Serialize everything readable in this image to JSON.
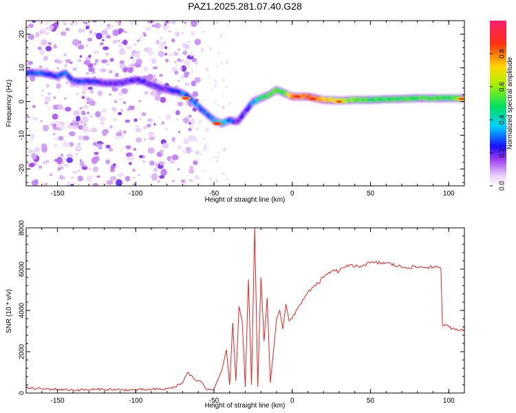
{
  "title": "PAZ1.2025.281.07.40.G28",
  "chart_data": [
    {
      "type": "heatmap",
      "title": "PAZ1.2025.281.07.40.G28",
      "xlabel": "Height of straight line (km)",
      "ylabel": "Frequency (Hz)",
      "xlim": [
        -170,
        110
      ],
      "ylim": [
        -25,
        24
      ],
      "xticks": [
        -150,
        -100,
        -50,
        0,
        50,
        100
      ],
      "yticks": [
        -20,
        -10,
        0,
        10,
        20
      ],
      "colorbar": {
        "label": "Normalized spectral amplitude",
        "range": [
          0,
          1
        ],
        "ticks": [
          0.0,
          0.2,
          0.4,
          0.6,
          0.8
        ]
      },
      "ridge": {
        "x": [
          -170,
          -160,
          -150,
          -145,
          -140,
          -130,
          -120,
          -110,
          -100,
          -95,
          -90,
          -85,
          -80,
          -75,
          -70,
          -65,
          -60,
          -55,
          -50,
          -45,
          -40,
          -35,
          -30,
          -25,
          -20,
          -15,
          -10,
          -5,
          0,
          10,
          20,
          30,
          40,
          50,
          60,
          70,
          80,
          90,
          100,
          110
        ],
        "y": [
          8.5,
          8.5,
          7.5,
          8.5,
          6,
          6,
          5.5,
          5.5,
          6.5,
          6,
          5,
          4,
          3.5,
          3,
          2.5,
          1,
          -1.5,
          -3.5,
          -5.5,
          -6.5,
          -5.5,
          -6,
          -3,
          0,
          1,
          2,
          3.5,
          2.5,
          1.5,
          1.5,
          0.5,
          0.3,
          0.5,
          0.5,
          0.7,
          0.8,
          1,
          1,
          1,
          1
        ],
        "amplitude": [
          0.25,
          0.3,
          0.25,
          0.3,
          0.25,
          0.25,
          0.2,
          0.2,
          0.2,
          0.2,
          0.2,
          0.2,
          0.2,
          0.25,
          0.3,
          0.3,
          0.3,
          0.3,
          0.35,
          0.4,
          0.3,
          0.2,
          0.2,
          0.35,
          0.45,
          0.5,
          0.55,
          0.55,
          0.75,
          0.8,
          0.75,
          0.65,
          0.55,
          0.5,
          0.5,
          0.5,
          0.5,
          0.5,
          0.5,
          0.55
        ]
      },
      "hotspots": [
        {
          "x": -68,
          "y": 1,
          "amplitude": 0.9
        },
        {
          "x": -48,
          "y": -6.5,
          "amplitude": 0.95
        },
        {
          "x": 3,
          "y": 1.5,
          "amplitude": 0.95
        },
        {
          "x": 13,
          "y": 0.8,
          "amplitude": 0.95
        },
        {
          "x": 30,
          "y": 0,
          "amplitude": 0.85
        },
        {
          "x": 108,
          "y": 0.8,
          "amplitude": 0.85
        }
      ]
    },
    {
      "type": "line",
      "xlabel": "Height of straight line (km)",
      "ylabel": "SNR (10 * v/v)",
      "xlim": [
        -170,
        110
      ],
      "ylim": [
        0,
        8000
      ],
      "xticks": [
        -150,
        -100,
        -50,
        0,
        50,
        100
      ],
      "yticks": [
        0,
        2000,
        4000,
        6000,
        8000
      ],
      "series": [
        {
          "name": "SNR",
          "color": "#e8201e",
          "x": [
            -170,
            -160,
            -150,
            -140,
            -130,
            -120,
            -110,
            -100,
            -90,
            -80,
            -75,
            -70,
            -67,
            -63,
            -60,
            -57,
            -55,
            -50,
            -45,
            -42,
            -40,
            -38,
            -36,
            -34,
            -32,
            -30,
            -28,
            -26,
            -24,
            -22,
            -20,
            -18,
            -16,
            -14,
            -12,
            -10,
            -8,
            -6,
            -4,
            -2,
            0,
            5,
            10,
            15,
            20,
            25,
            30,
            35,
            40,
            50,
            60,
            70,
            80,
            90,
            95,
            96,
            100,
            105,
            110
          ],
          "y": [
            250,
            200,
            180,
            150,
            160,
            180,
            160,
            150,
            170,
            200,
            300,
            500,
            1000,
            700,
            600,
            450,
            200,
            200,
            1100,
            2100,
            400,
            3400,
            600,
            4200,
            3500,
            300,
            5500,
            400,
            8000,
            300,
            5600,
            2500,
            4600,
            500,
            2000,
            3600,
            4000,
            3100,
            4300,
            3500,
            3600,
            4300,
            4900,
            5200,
            5600,
            5900,
            5900,
            6200,
            6100,
            6300,
            6300,
            6100,
            6100,
            6100,
            6000,
            3300,
            3200,
            3100,
            3100
          ]
        }
      ]
    }
  ]
}
